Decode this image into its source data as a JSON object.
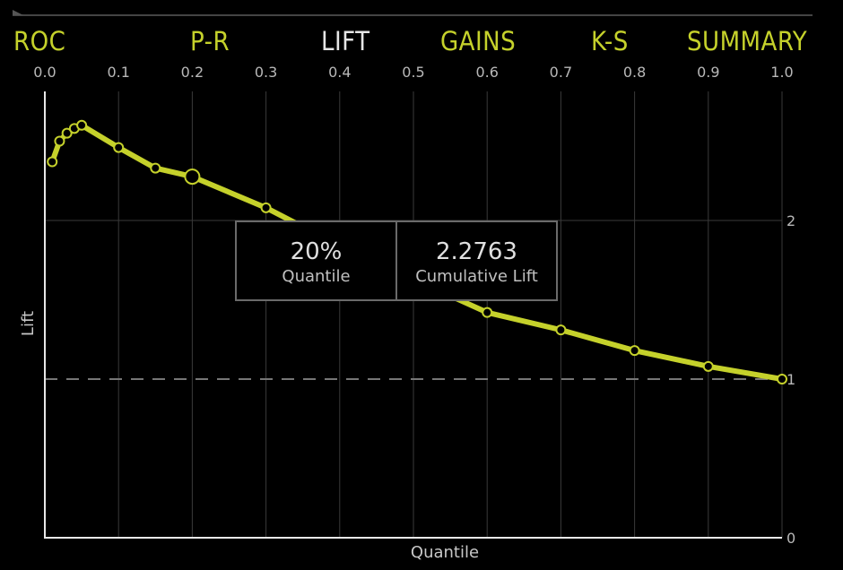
{
  "tabs": [
    {
      "id": "roc",
      "label": "ROC",
      "active": false
    },
    {
      "id": "pr",
      "label": "P-R",
      "active": false
    },
    {
      "id": "lift",
      "label": "LIFT",
      "active": true
    },
    {
      "id": "gains",
      "label": "GAINS",
      "active": false
    },
    {
      "id": "ks",
      "label": "K-S",
      "active": false
    },
    {
      "id": "summary",
      "label": "SUMMARY",
      "active": false
    }
  ],
  "colors": {
    "background": "#000000",
    "accent": "#c5d12b",
    "active_tab": "#e6e6e6",
    "grid": "#3a3a3a",
    "baseline": "#777777"
  },
  "tooltip": {
    "value_1": "20%",
    "label_1": "Quantile",
    "value_2": "2.2763",
    "label_2": "Cumulative Lift"
  },
  "chart_data": {
    "type": "line",
    "xlabel": "Quantile",
    "ylabel": "Lift",
    "xlim": [
      0,
      1
    ],
    "ylim": [
      0,
      2.5
    ],
    "x_ticks": [
      "0.0",
      "0.1",
      "0.2",
      "0.3",
      "0.4",
      "0.5",
      "0.6",
      "0.7",
      "0.8",
      "0.9",
      "1.0"
    ],
    "y_ticks": [
      "0",
      "1",
      "2"
    ],
    "x_axis_position": "top",
    "y_axis_position": "right",
    "grid": true,
    "baseline": {
      "y": 1,
      "style": "dashed"
    },
    "highlight": {
      "x": 0.2,
      "y": 2.2763
    },
    "series": [
      {
        "x": [
          0.01,
          0.02,
          0.03,
          0.04,
          0.05,
          0.1,
          0.15,
          0.2,
          0.3,
          0.4,
          0.5,
          0.6,
          0.7,
          0.8,
          0.9,
          1.0
        ],
        "y": [
          2.37,
          2.5,
          2.55,
          2.58,
          2.6,
          2.46,
          2.33,
          2.2763,
          2.08,
          1.84,
          1.63,
          1.42,
          1.31,
          1.18,
          1.08,
          1.0
        ]
      }
    ]
  }
}
